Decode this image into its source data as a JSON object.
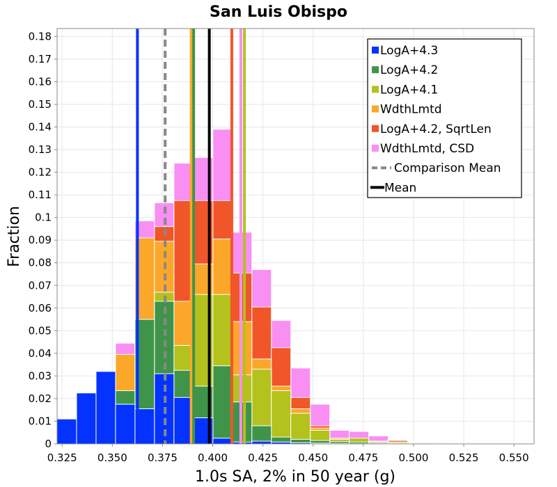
{
  "chart_data": {
    "type": "bar",
    "title": "San Luis Obispo",
    "xlabel": "1.0s SA, 2% in 50 year (g)",
    "ylabel": "Fraction",
    "xlim": [
      0.3225,
      0.56
    ],
    "ylim": [
      0,
      0.1835
    ],
    "bin_width": 0.0097,
    "x_ticks": [
      "0.325",
      "0.350",
      "0.375",
      "0.400",
      "0.425",
      "0.450",
      "0.475",
      "0.500",
      "0.525",
      "0.550"
    ],
    "y_ticks": [
      "0",
      "0.01",
      "0.02",
      "0.03",
      "0.04",
      "0.05",
      "0.06",
      "0.07",
      "0.08",
      "0.09",
      "0.1",
      "0.11",
      "0.12",
      "0.13",
      "0.14",
      "0.15",
      "0.16",
      "0.17",
      "0.18"
    ],
    "grid": true,
    "legend_position": "top-right",
    "bin_starts": [
      0.3225,
      0.3322,
      0.3419,
      0.3516,
      0.3613,
      0.371,
      0.3807,
      0.3904,
      0.4001,
      0.4098,
      0.4195,
      0.4292,
      0.4389,
      0.4486,
      0.4583,
      0.468,
      0.4777,
      0.4874,
      0.4971,
      0.5068,
      0.5165,
      0.5262,
      0.5359,
      0.5456
    ],
    "series": [
      {
        "name": "LogA+4.3",
        "color": "#0433ff",
        "values": [
          0.011,
          0.0225,
          0.032,
          0.0175,
          0.0155,
          0.031,
          0.0205,
          0.0115,
          0.0025,
          0.0008,
          0.0012,
          0.0008,
          0.0005,
          0.0003,
          0.0002,
          0.0001,
          0.0001,
          0.0001,
          0,
          0,
          0,
          0,
          0,
          0
        ]
      },
      {
        "name": "LogA+4.2",
        "color": "#40944a",
        "values": [
          0,
          0,
          0,
          0.0235,
          0.055,
          0.063,
          0.0325,
          0.0255,
          0.0345,
          0.0185,
          0.008,
          0.003,
          0.002,
          0.0015,
          0.001,
          0.0008,
          0.0005,
          0.0003,
          0.0002,
          0.0001,
          0,
          0,
          0,
          0
        ]
      },
      {
        "name": "LogA+4.1",
        "color": "#b3c21c",
        "values": [
          0,
          0,
          0,
          0,
          0,
          0.067,
          0.0435,
          0.066,
          0.066,
          0.0305,
          0.033,
          0.0235,
          0.0135,
          0.006,
          0.002,
          0.0025,
          0.001,
          0.0008,
          0.0005,
          0.0003,
          0.0002,
          0.0001,
          0.0001,
          0
        ]
      },
      {
        "name": "WdthLmtd",
        "color": "#fba72a",
        "values": [
          0,
          0,
          0,
          0.0395,
          0.091,
          0.0895,
          0.063,
          0.0795,
          0.0905,
          0.054,
          0.0375,
          0.0255,
          0.0155,
          0.007,
          0.0025,
          0.002,
          0.0012,
          0.0008,
          0.0006,
          0.0005,
          0.0003,
          0.0002,
          0.0001,
          0.0001
        ]
      },
      {
        "name": "LogA+4.2, SqrtLen",
        "color": "#f0562a",
        "values": [
          0,
          0,
          0,
          0.035,
          0.0905,
          0.096,
          0.1075,
          0.1075,
          0.1075,
          0.0755,
          0.0605,
          0.0425,
          0.0205,
          0.008,
          0.0025,
          0.0015,
          0.0012,
          0.0015,
          0.0008,
          0.0003,
          0.0002,
          0.0001,
          0,
          0
        ]
      },
      {
        "name": "WdthLmtd, CSD",
        "color": "#f98ef3",
        "values": [
          0,
          0,
          0,
          0.0445,
          0.0985,
          0.1065,
          0.124,
          0.1265,
          0.139,
          0.0935,
          0.077,
          0.0545,
          0.0335,
          0.0175,
          0.006,
          0.0055,
          0.0035,
          0.0015,
          0.001,
          0.0008,
          0.0005,
          0.0003,
          0.0002,
          0.0001
        ]
      }
    ],
    "vertical_lines": [
      {
        "series": "LogA+4.3",
        "x": 0.3625,
        "color": "#0433ff",
        "style": "solid"
      },
      {
        "series": "WdthLmtd",
        "x": 0.3893,
        "color": "#fba72a",
        "style": "solid"
      },
      {
        "series": "LogA+4.2",
        "x": 0.3905,
        "color": "#40944a",
        "style": "solid"
      },
      {
        "series": "LogA+4.2, SqrtLen",
        "x": 0.4095,
        "color": "#f0562a",
        "style": "solid"
      },
      {
        "series": "WdthLmtd, CSD",
        "x": 0.414,
        "color": "#f98ef3",
        "style": "solid"
      },
      {
        "series": "LogA+4.1",
        "x": 0.4158,
        "color": "#b3c21c",
        "style": "solid"
      },
      {
        "series": "Comparison Mean",
        "x": 0.3763,
        "color": "#888888",
        "style": "dashed"
      },
      {
        "series": "Mean",
        "x": 0.3983,
        "color": "#000000",
        "style": "solid"
      }
    ],
    "legend": [
      {
        "label": "LogA+4.3",
        "color": "#0433ff",
        "kind": "box"
      },
      {
        "label": "LogA+4.2",
        "color": "#40944a",
        "kind": "box"
      },
      {
        "label": "LogA+4.1",
        "color": "#b3c21c",
        "kind": "box"
      },
      {
        "label": "WdthLmtd",
        "color": "#fba72a",
        "kind": "box"
      },
      {
        "label": "LogA+4.2, SqrtLen",
        "color": "#f0562a",
        "kind": "box"
      },
      {
        "label": "WdthLmtd, CSD",
        "color": "#f98ef3",
        "kind": "box"
      },
      {
        "label": "Comparison Mean",
        "color": "#888888",
        "kind": "dashed"
      },
      {
        "label": "Mean",
        "color": "#000000",
        "kind": "line"
      }
    ]
  }
}
